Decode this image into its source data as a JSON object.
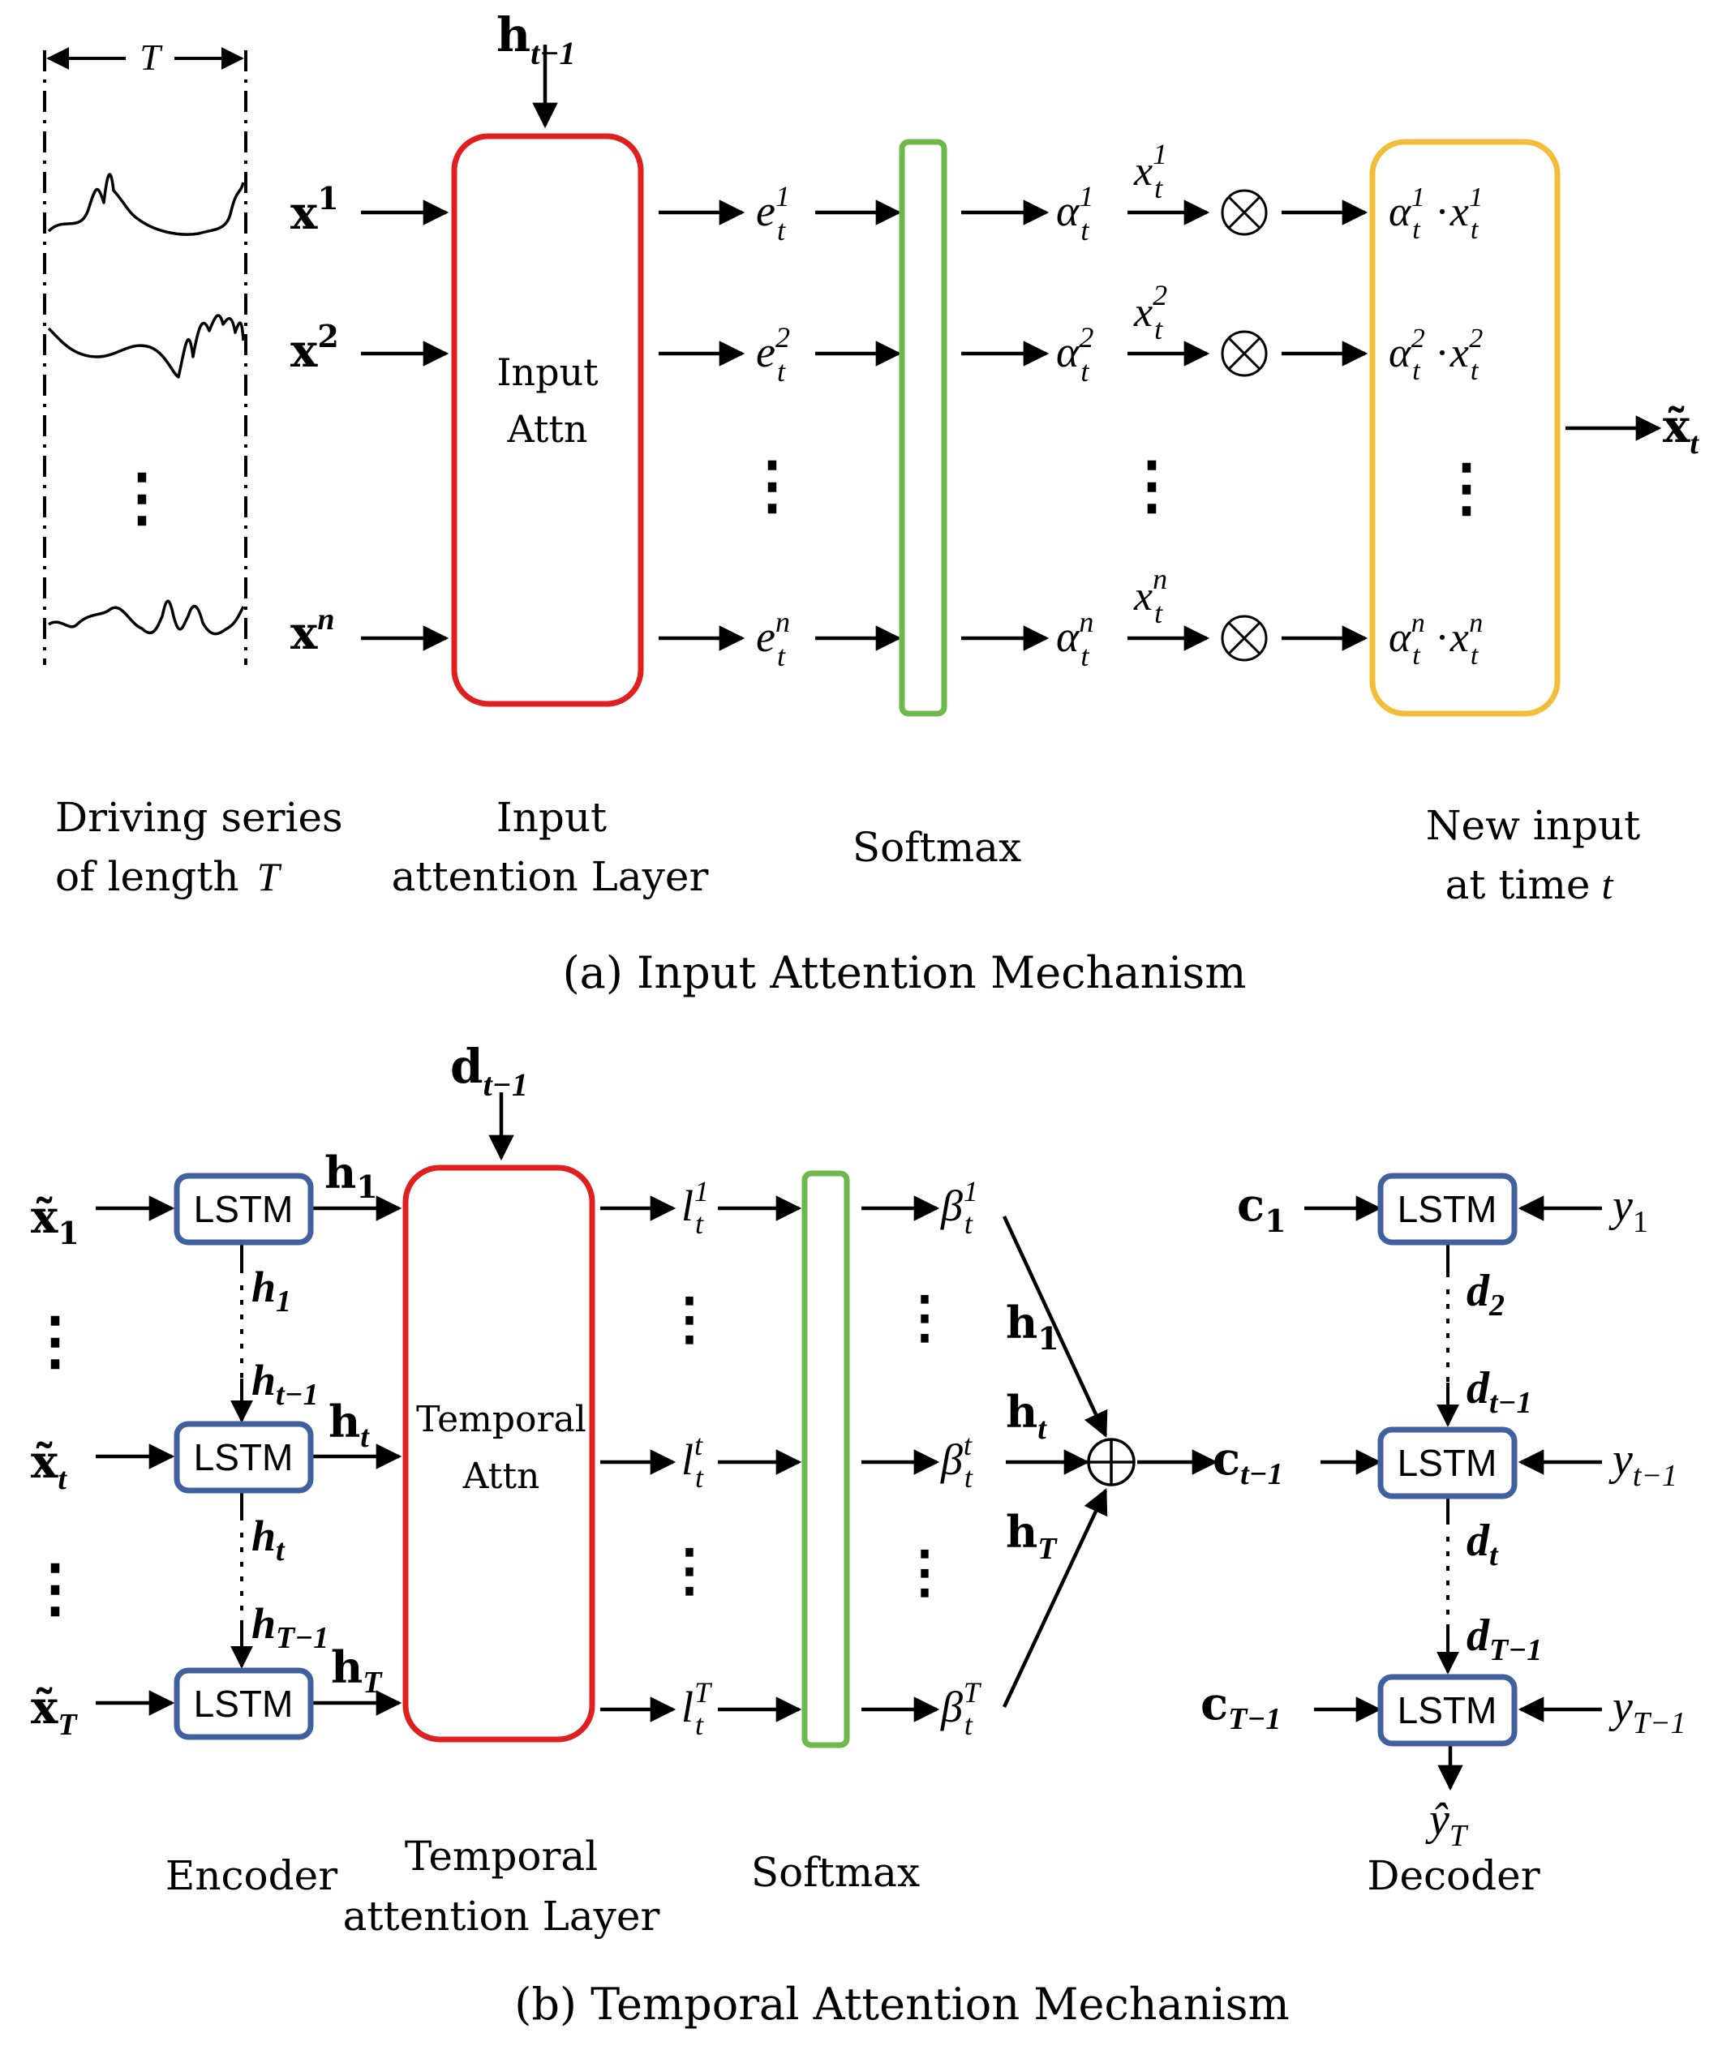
{
  "panel_a": {
    "caption": "(a) Input Attention Mechanism",
    "window_label": "T",
    "hidden_input": {
      "base": "h",
      "sub": "t−1"
    },
    "inputs": [
      {
        "base": "x",
        "sup": "1"
      },
      {
        "base": "x",
        "sup": "2"
      },
      {
        "base": "x",
        "sup": "n"
      }
    ],
    "energies": [
      {
        "base": "e",
        "sub": "t",
        "sup": "1"
      },
      {
        "base": "e",
        "sub": "t",
        "sup": "2"
      },
      {
        "base": "e",
        "sub": "t",
        "sup": "n"
      }
    ],
    "weights": [
      {
        "base": "α",
        "sub": "t",
        "sup": "1"
      },
      {
        "base": "α",
        "sub": "t",
        "sup": "2"
      },
      {
        "base": "α",
        "sub": "t",
        "sup": "n"
      }
    ],
    "mult_inputs": [
      {
        "base": "x",
        "sub": "t",
        "sup": "1"
      },
      {
        "base": "x",
        "sub": "t",
        "sup": "2"
      },
      {
        "base": "x",
        "sub": "t",
        "sup": "n"
      }
    ],
    "products": [
      {
        "a_base": "α",
        "a_sub": "t",
        "a_sup": "1",
        "dot": "·",
        "x_base": "x",
        "x_sub": "t",
        "x_sup": "1"
      },
      {
        "a_base": "α",
        "a_sub": "t",
        "a_sup": "2",
        "dot": "·",
        "x_base": "x",
        "x_sub": "t",
        "x_sup": "2"
      },
      {
        "a_base": "α",
        "a_sub": "t",
        "a_sup": "n",
        "dot": "·",
        "x_base": "x",
        "x_sub": "t",
        "x_sup": "n"
      }
    ],
    "output": {
      "base": "x̃",
      "sub": "t"
    },
    "attn_box": {
      "line1": "Input",
      "line2": "Attn"
    },
    "labels": {
      "series_l1": "Driving series",
      "series_l2": "of length",
      "series_var": "T",
      "attn_l1": "Input",
      "attn_l2": "attention Layer",
      "softmax": "Softmax",
      "new_l1": "New input",
      "new_l2": "at time",
      "new_var": "t"
    },
    "ellipsis": "⋮",
    "otimes": "⊗"
  },
  "panel_b": {
    "caption": "(b) Temporal Attention Mechanism",
    "hidden_input": {
      "base": "d",
      "sub": "t−1"
    },
    "lstm_label": "LSTM",
    "enc_inputs": [
      {
        "base": "x̃",
        "sub": "1"
      },
      {
        "base": "x̃",
        "sub": "t"
      },
      {
        "base": "x̃",
        "sub": "T"
      }
    ],
    "enc_outputs": [
      {
        "base": "h",
        "sub": "1"
      },
      {
        "base": "h",
        "sub": "t"
      },
      {
        "base": "h",
        "sub": "T"
      }
    ],
    "enc_states": [
      {
        "base": "h",
        "sub": "1"
      },
      {
        "base": "h",
        "sub": "t−1"
      },
      {
        "base": "h",
        "sub": "t"
      },
      {
        "base": "h",
        "sub": "T−1"
      }
    ],
    "attn_box": {
      "line1": "Temporal",
      "line2": "Attn"
    },
    "scores": [
      {
        "base": "l",
        "sub": "t",
        "sup": "1"
      },
      {
        "base": "l",
        "sub": "t",
        "sup": "t"
      },
      {
        "base": "l",
        "sub": "t",
        "sup": "T"
      }
    ],
    "weights": [
      {
        "base": "β",
        "sub": "t",
        "sup": "1"
      },
      {
        "base": "β",
        "sub": "t",
        "sup": "t"
      },
      {
        "base": "β",
        "sub": "t",
        "sup": "T"
      }
    ],
    "sum_inputs": [
      {
        "base": "h",
        "sub": "1"
      },
      {
        "base": "h",
        "sub": "t"
      },
      {
        "base": "h",
        "sub": "T"
      }
    ],
    "oplus": "⊕",
    "context_out": {
      "base": "c",
      "sub": "t−1"
    },
    "dec_contexts": [
      {
        "base": "c",
        "sub": "1"
      },
      {
        "base": "c",
        "sub": "T−1"
      }
    ],
    "dec_targets": [
      {
        "base": "y",
        "sub": "1"
      },
      {
        "base": "y",
        "sub": "t−1"
      },
      {
        "base": "y",
        "sub": "T−1"
      }
    ],
    "dec_states": [
      {
        "base": "d",
        "sub": "2"
      },
      {
        "base": "d",
        "sub": "t−1"
      },
      {
        "base": "d",
        "sub": "t"
      },
      {
        "base": "d",
        "sub": "T−1"
      }
    ],
    "prediction": {
      "base": "ŷ",
      "sub": "T"
    },
    "labels": {
      "encoder": "Encoder",
      "attn_l1": "Temporal",
      "attn_l2": "attention Layer",
      "softmax": "Softmax",
      "decoder": "Decoder"
    },
    "ellipsis": "⋮"
  },
  "colors": {
    "attention_box": "#e02020",
    "softmax_box": "#6cb84a",
    "output_box": "#f2be3a",
    "lstm_box": "#41609f",
    "ink": "#000000"
  }
}
